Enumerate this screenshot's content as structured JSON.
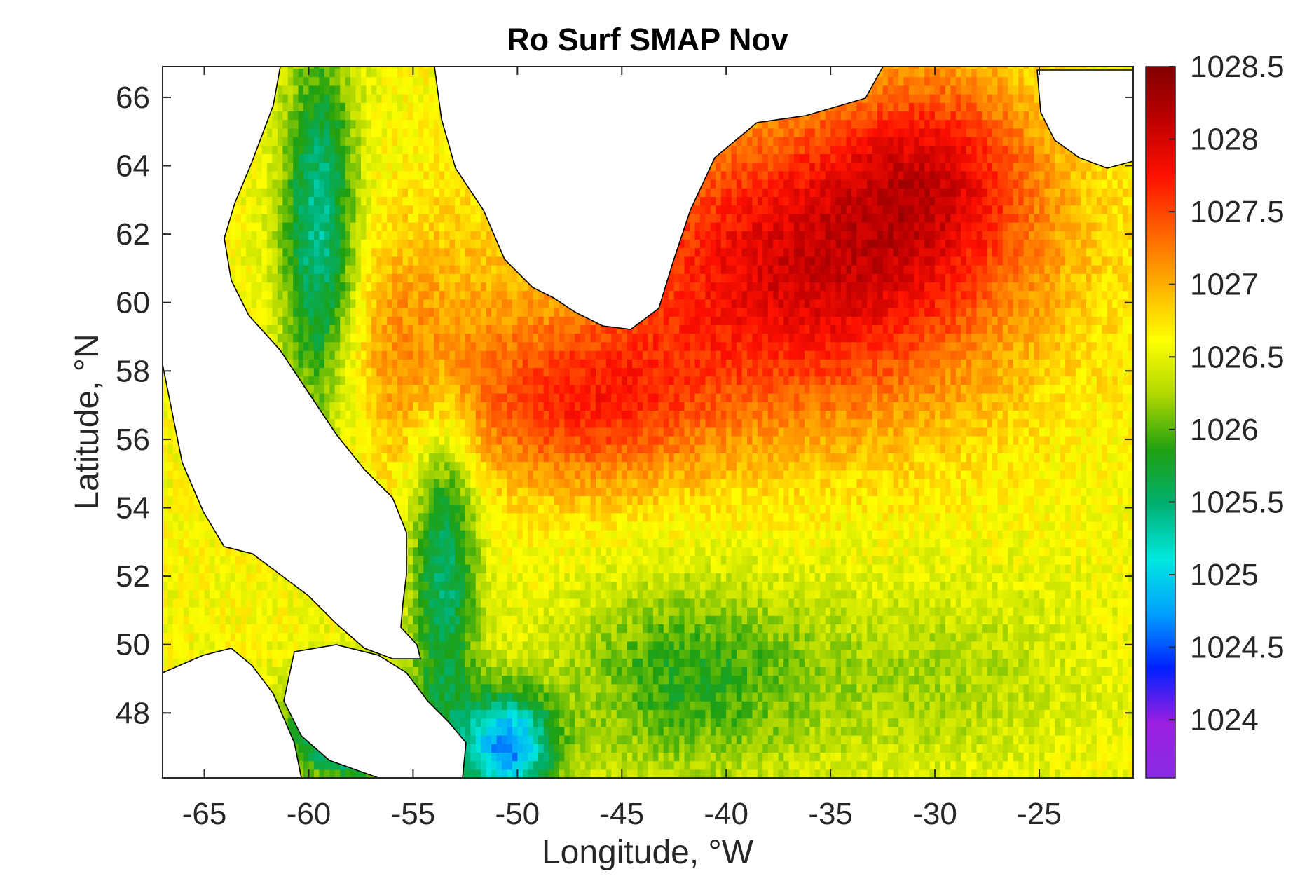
{
  "chart_data": {
    "type": "heatmap",
    "title": "Ro Surf SMAP Nov",
    "xlabel": "Longitude, °W",
    "ylabel": "Latitude, °N",
    "xlim": [
      -67,
      -20.5
    ],
    "ylim": [
      46.1,
      66.9
    ],
    "x_ticks": [
      -65,
      -60,
      -55,
      -50,
      -45,
      -40,
      -35,
      -30,
      -25
    ],
    "x_tick_labels": [
      "-65",
      "-60",
      "-55",
      "-50",
      "-45",
      "-40",
      "-35",
      "-30",
      "-25"
    ],
    "y_ticks": [
      48,
      50,
      52,
      54,
      56,
      58,
      60,
      62,
      64,
      66
    ],
    "y_tick_labels": [
      "48",
      "50",
      "52",
      "54",
      "56",
      "58",
      "60",
      "62",
      "64",
      "66"
    ],
    "colorbar": {
      "range": [
        1023.6,
        1028.5
      ],
      "ticks": [
        1024,
        1024.5,
        1025,
        1025.5,
        1026,
        1026.5,
        1027,
        1027.5,
        1028,
        1028.5
      ],
      "tick_labels": [
        "1024",
        "1024.5",
        "1025",
        "1025.5",
        "1026",
        "1026.5",
        "1027",
        "1027.5",
        "1028",
        "1028.5"
      ],
      "colormap": [
        "#8a2be2",
        "#9b1fe0",
        "#0020ff",
        "#00a0ff",
        "#00e8e0",
        "#00b070",
        "#20a010",
        "#b0d800",
        "#ffff00",
        "#ffb000",
        "#ff6000",
        "#ff1000",
        "#c00000",
        "#800000"
      ]
    },
    "grid": false,
    "land_color": "#ffffff",
    "coast_color": "#000000"
  }
}
